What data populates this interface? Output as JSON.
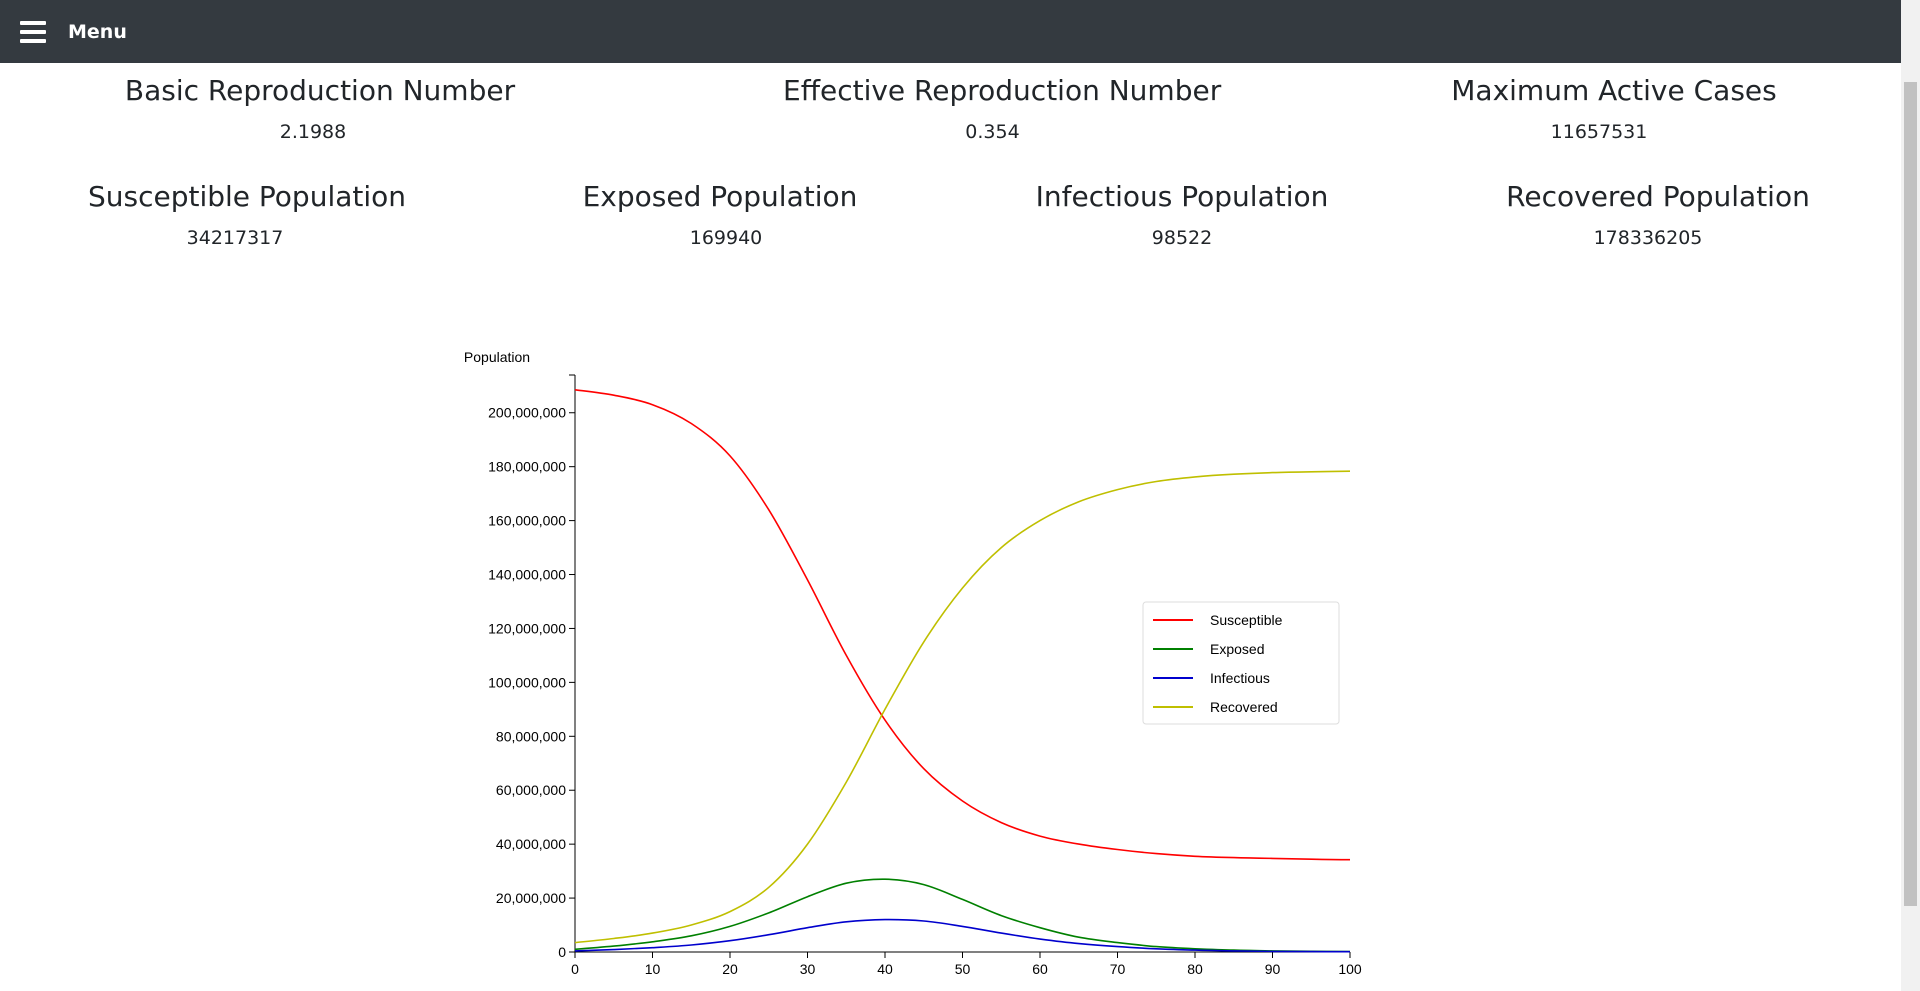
{
  "header": {
    "menu_label": "Menu"
  },
  "stats": [
    {
      "title": "Basic Reproduction Number",
      "value": "2.1988"
    },
    {
      "title": "Effective Reproduction Number",
      "value": "0.354"
    },
    {
      "title": "Maximum Active Cases",
      "value": "11657531"
    },
    {
      "title": "Susceptible Population",
      "value": "34217317"
    },
    {
      "title": "Exposed Population",
      "value": "169940"
    },
    {
      "title": "Infectious Population",
      "value": "98522"
    },
    {
      "title": "Recovered Population",
      "value": "178336205"
    }
  ],
  "chart_data": {
    "type": "line",
    "ylabel": "Population",
    "xlabel": "",
    "xlim": [
      0,
      100
    ],
    "ylim": [
      0,
      214000000
    ],
    "x_ticks": [
      0,
      10,
      20,
      30,
      40,
      50,
      60,
      70,
      80,
      90,
      100
    ],
    "y_ticks": [
      "0",
      "20,000,000",
      "40,000,000",
      "60,000,000",
      "80,000,000",
      "100,000,000",
      "120,000,000",
      "140,000,000",
      "160,000,000",
      "180,000,000",
      "200,000,000"
    ],
    "y_tick_values": [
      0,
      20000000,
      40000000,
      60000000,
      80000000,
      100000000,
      120000000,
      140000000,
      160000000,
      180000000,
      200000000
    ],
    "legend_position": "right",
    "x": [
      0,
      5,
      10,
      15,
      20,
      25,
      30,
      35,
      40,
      45,
      50,
      55,
      60,
      65,
      70,
      75,
      80,
      85,
      90,
      95,
      100
    ],
    "series": [
      {
        "name": "Susceptible",
        "color": "#ff0000",
        "values": [
          208500000,
          206500000,
          203000000,
          196000000,
          184000000,
          164000000,
          138000000,
          110000000,
          86000000,
          68000000,
          56000000,
          48000000,
          43000000,
          40000000,
          38000000,
          36500000,
          35500000,
          35000000,
          34700000,
          34400000,
          34217317
        ]
      },
      {
        "name": "Exposed",
        "color": "#008000",
        "values": [
          1000000,
          2200000,
          3800000,
          6000000,
          9500000,
          14500000,
          20500000,
          25500000,
          27000000,
          25000000,
          19500000,
          13500000,
          9000000,
          5500000,
          3500000,
          2000000,
          1200000,
          700000,
          400000,
          250000,
          169940
        ]
      },
      {
        "name": "Infectious",
        "color": "#0000cd",
        "values": [
          400000,
          900000,
          1600000,
          2600000,
          4200000,
          6400000,
          9000000,
          11200000,
          12000000,
          11500000,
          9500000,
          7000000,
          4800000,
          3100000,
          2000000,
          1200000,
          700000,
          400000,
          230000,
          150000,
          98522
        ]
      },
      {
        "name": "Recovered",
        "color": "#bfbf00",
        "values": [
          3500000,
          5000000,
          7000000,
          10000000,
          15000000,
          24000000,
          40000000,
          63000000,
          90000000,
          115000000,
          135000000,
          150000000,
          160000000,
          167000000,
          171500000,
          174500000,
          176200000,
          177200000,
          177800000,
          178100000,
          178336205
        ]
      }
    ]
  }
}
